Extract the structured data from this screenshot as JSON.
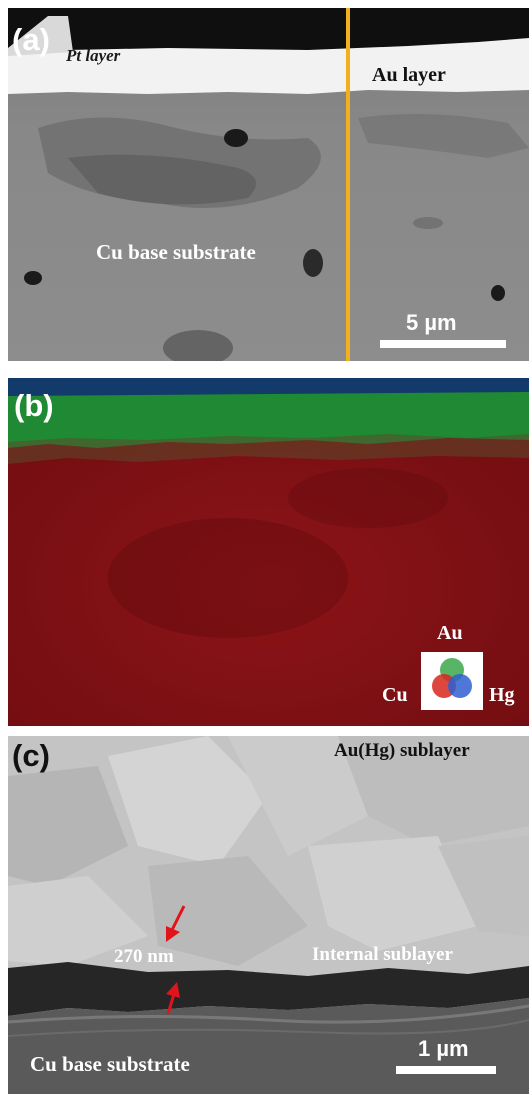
{
  "figure": {
    "panel_a": {
      "label": "(a)",
      "pt_layer": "Pt layer",
      "au_layer": "Au layer",
      "substrate": "Cu base substrate",
      "scale": "5 µm"
    },
    "panel_b": {
      "label": "(b)",
      "legend_au": "Au",
      "legend_cu": "Cu",
      "legend_hg": "Hg"
    },
    "panel_c": {
      "label": "(c)",
      "sublayer": "Au(Hg) sublayer",
      "thickness": "270 nm",
      "internal": "Internal sublayer",
      "substrate": "Cu base substrate",
      "scale": "1 µm"
    }
  }
}
